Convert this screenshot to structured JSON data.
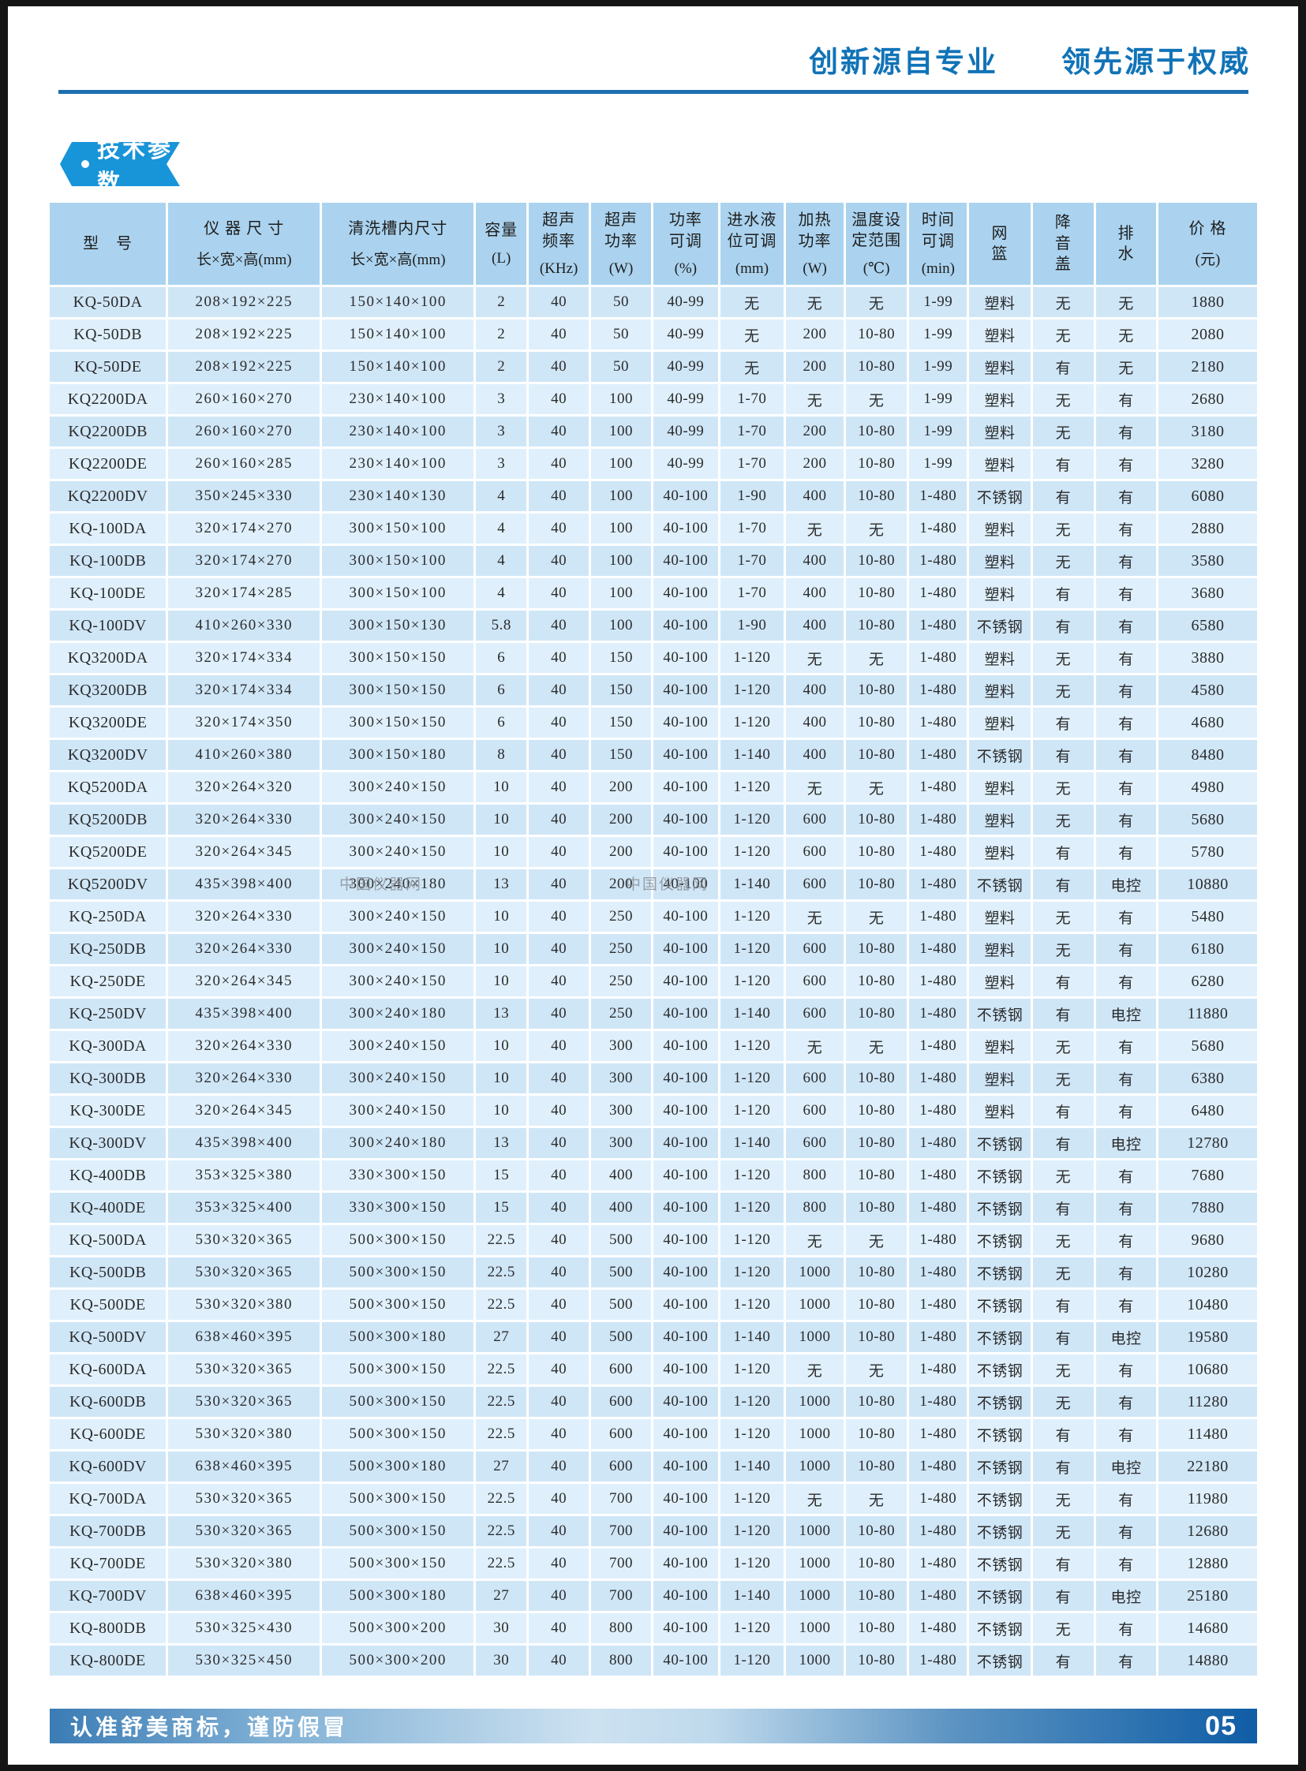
{
  "page": {
    "slogan": "创新源自专业　　领先源于权威",
    "section_title": "技术参数",
    "footer_note": "认准舒美商标，谨防假冒",
    "page_number": "05",
    "watermark": "中国仪器网"
  },
  "colors": {
    "accent": "#1173b7",
    "accent-dark": "#1d6fae",
    "ribbon": "#1894d8",
    "head-bg": "#abd3ef",
    "row-a": "#cfe6f7",
    "row-b": "#dff0fc"
  },
  "table": {
    "columns": [
      {
        "key": "model",
        "label": [
          "型　号"
        ],
        "unit": null
      },
      {
        "key": "device-size",
        "label": [
          "仪 器 尺 寸"
        ],
        "unit": "长×宽×高(mm)"
      },
      {
        "key": "tank-size",
        "label": [
          "清洗槽内尺寸"
        ],
        "unit": "长×宽×高(mm)"
      },
      {
        "key": "capacity",
        "label": [
          "容量"
        ],
        "unit": "(L)"
      },
      {
        "key": "us-frequency",
        "label": [
          "超声",
          "频率"
        ],
        "unit": "(KHz)"
      },
      {
        "key": "us-power",
        "label": [
          "超声",
          "功率"
        ],
        "unit": "(W)"
      },
      {
        "key": "power-adjust",
        "label": [
          "功率",
          "可调"
        ],
        "unit": "(%)"
      },
      {
        "key": "water-level",
        "label": [
          "进水液",
          "位可调"
        ],
        "unit": "(mm)"
      },
      {
        "key": "heat-power",
        "label": [
          "加热",
          "功率"
        ],
        "unit": "(W)"
      },
      {
        "key": "temp-range",
        "label": [
          "温度设",
          "定范围"
        ],
        "unit": "(℃)"
      },
      {
        "key": "time-adjust",
        "label": [
          "时间",
          "可调"
        ],
        "unit": "(min)"
      },
      {
        "key": "basket",
        "label": [
          "网",
          "篮"
        ],
        "unit": null
      },
      {
        "key": "noise-cover",
        "label": [
          "降",
          "音",
          "盖"
        ],
        "unit": null
      },
      {
        "key": "drain",
        "label": [
          "排",
          "水"
        ],
        "unit": null
      },
      {
        "key": "price",
        "label": [
          "价 格"
        ],
        "unit": "(元)"
      }
    ],
    "rows": [
      [
        "KQ-50DA",
        "208×192×225",
        "150×140×100",
        "2",
        "40",
        "50",
        "40-99",
        "无",
        "无",
        "无",
        "1-99",
        "塑料",
        "无",
        "无",
        "1880"
      ],
      [
        "KQ-50DB",
        "208×192×225",
        "150×140×100",
        "2",
        "40",
        "50",
        "40-99",
        "无",
        "200",
        "10-80",
        "1-99",
        "塑料",
        "无",
        "无",
        "2080"
      ],
      [
        "KQ-50DE",
        "208×192×225",
        "150×140×100",
        "2",
        "40",
        "50",
        "40-99",
        "无",
        "200",
        "10-80",
        "1-99",
        "塑料",
        "有",
        "无",
        "2180"
      ],
      [
        "KQ2200DA",
        "260×160×270",
        "230×140×100",
        "3",
        "40",
        "100",
        "40-99",
        "1-70",
        "无",
        "无",
        "1-99",
        "塑料",
        "无",
        "有",
        "2680"
      ],
      [
        "KQ2200DB",
        "260×160×270",
        "230×140×100",
        "3",
        "40",
        "100",
        "40-99",
        "1-70",
        "200",
        "10-80",
        "1-99",
        "塑料",
        "无",
        "有",
        "3180"
      ],
      [
        "KQ2200DE",
        "260×160×285",
        "230×140×100",
        "3",
        "40",
        "100",
        "40-99",
        "1-70",
        "200",
        "10-80",
        "1-99",
        "塑料",
        "有",
        "有",
        "3280"
      ],
      [
        "KQ2200DV",
        "350×245×330",
        "230×140×130",
        "4",
        "40",
        "100",
        "40-100",
        "1-90",
        "400",
        "10-80",
        "1-480",
        "不锈钢",
        "有",
        "有",
        "6080"
      ],
      [
        "KQ-100DA",
        "320×174×270",
        "300×150×100",
        "4",
        "40",
        "100",
        "40-100",
        "1-70",
        "无",
        "无",
        "1-480",
        "塑料",
        "无",
        "有",
        "2880"
      ],
      [
        "KQ-100DB",
        "320×174×270",
        "300×150×100",
        "4",
        "40",
        "100",
        "40-100",
        "1-70",
        "400",
        "10-80",
        "1-480",
        "塑料",
        "无",
        "有",
        "3580"
      ],
      [
        "KQ-100DE",
        "320×174×285",
        "300×150×100",
        "4",
        "40",
        "100",
        "40-100",
        "1-70",
        "400",
        "10-80",
        "1-480",
        "塑料",
        "有",
        "有",
        "3680"
      ],
      [
        "KQ-100DV",
        "410×260×330",
        "300×150×130",
        "5.8",
        "40",
        "100",
        "40-100",
        "1-90",
        "400",
        "10-80",
        "1-480",
        "不锈钢",
        "有",
        "有",
        "6580"
      ],
      [
        "KQ3200DA",
        "320×174×334",
        "300×150×150",
        "6",
        "40",
        "150",
        "40-100",
        "1-120",
        "无",
        "无",
        "1-480",
        "塑料",
        "无",
        "有",
        "3880"
      ],
      [
        "KQ3200DB",
        "320×174×334",
        "300×150×150",
        "6",
        "40",
        "150",
        "40-100",
        "1-120",
        "400",
        "10-80",
        "1-480",
        "塑料",
        "无",
        "有",
        "4580"
      ],
      [
        "KQ3200DE",
        "320×174×350",
        "300×150×150",
        "6",
        "40",
        "150",
        "40-100",
        "1-120",
        "400",
        "10-80",
        "1-480",
        "塑料",
        "有",
        "有",
        "4680"
      ],
      [
        "KQ3200DV",
        "410×260×380",
        "300×150×180",
        "8",
        "40",
        "150",
        "40-100",
        "1-140",
        "400",
        "10-80",
        "1-480",
        "不锈钢",
        "有",
        "有",
        "8480"
      ],
      [
        "KQ5200DA",
        "320×264×320",
        "300×240×150",
        "10",
        "40",
        "200",
        "40-100",
        "1-120",
        "无",
        "无",
        "1-480",
        "塑料",
        "无",
        "有",
        "4980"
      ],
      [
        "KQ5200DB",
        "320×264×330",
        "300×240×150",
        "10",
        "40",
        "200",
        "40-100",
        "1-120",
        "600",
        "10-80",
        "1-480",
        "塑料",
        "无",
        "有",
        "5680"
      ],
      [
        "KQ5200DE",
        "320×264×345",
        "300×240×150",
        "10",
        "40",
        "200",
        "40-100",
        "1-120",
        "600",
        "10-80",
        "1-480",
        "塑料",
        "有",
        "有",
        "5780"
      ],
      [
        "KQ5200DV",
        "435×398×400",
        "300×240×180",
        "13",
        "40",
        "200",
        "40-100",
        "1-140",
        "600",
        "10-80",
        "1-480",
        "不锈钢",
        "有",
        "电控",
        "10880"
      ],
      [
        "KQ-250DA",
        "320×264×330",
        "300×240×150",
        "10",
        "40",
        "250",
        "40-100",
        "1-120",
        "无",
        "无",
        "1-480",
        "塑料",
        "无",
        "有",
        "5480"
      ],
      [
        "KQ-250DB",
        "320×264×330",
        "300×240×150",
        "10",
        "40",
        "250",
        "40-100",
        "1-120",
        "600",
        "10-80",
        "1-480",
        "塑料",
        "无",
        "有",
        "6180"
      ],
      [
        "KQ-250DE",
        "320×264×345",
        "300×240×150",
        "10",
        "40",
        "250",
        "40-100",
        "1-120",
        "600",
        "10-80",
        "1-480",
        "塑料",
        "有",
        "有",
        "6280"
      ],
      [
        "KQ-250DV",
        "435×398×400",
        "300×240×180",
        "13",
        "40",
        "250",
        "40-100",
        "1-140",
        "600",
        "10-80",
        "1-480",
        "不锈钢",
        "有",
        "电控",
        "11880"
      ],
      [
        "KQ-300DA",
        "320×264×330",
        "300×240×150",
        "10",
        "40",
        "300",
        "40-100",
        "1-120",
        "无",
        "无",
        "1-480",
        "塑料",
        "无",
        "有",
        "5680"
      ],
      [
        "KQ-300DB",
        "320×264×330",
        "300×240×150",
        "10",
        "40",
        "300",
        "40-100",
        "1-120",
        "600",
        "10-80",
        "1-480",
        "塑料",
        "无",
        "有",
        "6380"
      ],
      [
        "KQ-300DE",
        "320×264×345",
        "300×240×150",
        "10",
        "40",
        "300",
        "40-100",
        "1-120",
        "600",
        "10-80",
        "1-480",
        "塑料",
        "有",
        "有",
        "6480"
      ],
      [
        "KQ-300DV",
        "435×398×400",
        "300×240×180",
        "13",
        "40",
        "300",
        "40-100",
        "1-140",
        "600",
        "10-80",
        "1-480",
        "不锈钢",
        "有",
        "电控",
        "12780"
      ],
      [
        "KQ-400DB",
        "353×325×380",
        "330×300×150",
        "15",
        "40",
        "400",
        "40-100",
        "1-120",
        "800",
        "10-80",
        "1-480",
        "不锈钢",
        "无",
        "有",
        "7680"
      ],
      [
        "KQ-400DE",
        "353×325×400",
        "330×300×150",
        "15",
        "40",
        "400",
        "40-100",
        "1-120",
        "800",
        "10-80",
        "1-480",
        "不锈钢",
        "有",
        "有",
        "7880"
      ],
      [
        "KQ-500DA",
        "530×320×365",
        "500×300×150",
        "22.5",
        "40",
        "500",
        "40-100",
        "1-120",
        "无",
        "无",
        "1-480",
        "不锈钢",
        "无",
        "有",
        "9680"
      ],
      [
        "KQ-500DB",
        "530×320×365",
        "500×300×150",
        "22.5",
        "40",
        "500",
        "40-100",
        "1-120",
        "1000",
        "10-80",
        "1-480",
        "不锈钢",
        "无",
        "有",
        "10280"
      ],
      [
        "KQ-500DE",
        "530×320×380",
        "500×300×150",
        "22.5",
        "40",
        "500",
        "40-100",
        "1-120",
        "1000",
        "10-80",
        "1-480",
        "不锈钢",
        "有",
        "有",
        "10480"
      ],
      [
        "KQ-500DV",
        "638×460×395",
        "500×300×180",
        "27",
        "40",
        "500",
        "40-100",
        "1-140",
        "1000",
        "10-80",
        "1-480",
        "不锈钢",
        "有",
        "电控",
        "19580"
      ],
      [
        "KQ-600DA",
        "530×320×365",
        "500×300×150",
        "22.5",
        "40",
        "600",
        "40-100",
        "1-120",
        "无",
        "无",
        "1-480",
        "不锈钢",
        "无",
        "有",
        "10680"
      ],
      [
        "KQ-600DB",
        "530×320×365",
        "500×300×150",
        "22.5",
        "40",
        "600",
        "40-100",
        "1-120",
        "1000",
        "10-80",
        "1-480",
        "不锈钢",
        "无",
        "有",
        "11280"
      ],
      [
        "KQ-600DE",
        "530×320×380",
        "500×300×150",
        "22.5",
        "40",
        "600",
        "40-100",
        "1-120",
        "1000",
        "10-80",
        "1-480",
        "不锈钢",
        "有",
        "有",
        "11480"
      ],
      [
        "KQ-600DV",
        "638×460×395",
        "500×300×180",
        "27",
        "40",
        "600",
        "40-100",
        "1-140",
        "1000",
        "10-80",
        "1-480",
        "不锈钢",
        "有",
        "电控",
        "22180"
      ],
      [
        "KQ-700DA",
        "530×320×365",
        "500×300×150",
        "22.5",
        "40",
        "700",
        "40-100",
        "1-120",
        "无",
        "无",
        "1-480",
        "不锈钢",
        "无",
        "有",
        "11980"
      ],
      [
        "KQ-700DB",
        "530×320×365",
        "500×300×150",
        "22.5",
        "40",
        "700",
        "40-100",
        "1-120",
        "1000",
        "10-80",
        "1-480",
        "不锈钢",
        "无",
        "有",
        "12680"
      ],
      [
        "KQ-700DE",
        "530×320×380",
        "500×300×150",
        "22.5",
        "40",
        "700",
        "40-100",
        "1-120",
        "1000",
        "10-80",
        "1-480",
        "不锈钢",
        "有",
        "有",
        "12880"
      ],
      [
        "KQ-700DV",
        "638×460×395",
        "500×300×180",
        "27",
        "40",
        "700",
        "40-100",
        "1-140",
        "1000",
        "10-80",
        "1-480",
        "不锈钢",
        "有",
        "电控",
        "25180"
      ],
      [
        "KQ-800DB",
        "530×325×430",
        "500×300×200",
        "30",
        "40",
        "800",
        "40-100",
        "1-120",
        "1000",
        "10-80",
        "1-480",
        "不锈钢",
        "无",
        "有",
        "14680"
      ],
      [
        "KQ-800DE",
        "530×325×450",
        "500×300×200",
        "30",
        "40",
        "800",
        "40-100",
        "1-120",
        "1000",
        "10-80",
        "1-480",
        "不锈钢",
        "有",
        "有",
        "14880"
      ]
    ]
  }
}
